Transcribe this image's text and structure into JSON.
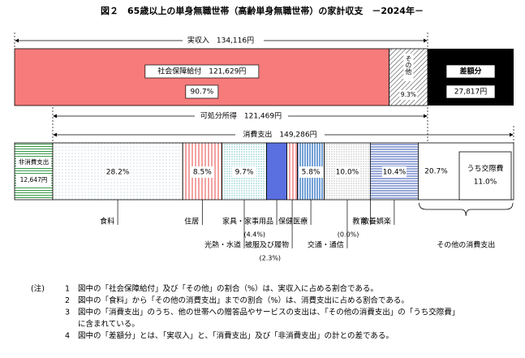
{
  "title": "図２　65歳以上の単身無職世帯（高齢単身無職世帯）の家計収支　－2024年－",
  "arrows": {
    "income": "実収入　134,116円",
    "disposable": "可処分所得　121,469円",
    "consumption": "消費支出　149,286円"
  },
  "income": {
    "segments": [
      {
        "name": "社会保障給付　121,629円",
        "value": 90.7,
        "value_label": "90.7%",
        "color": "#f77b7b"
      },
      {
        "name": "その他",
        "value": 9.3,
        "value_label": "9.3%"
      }
    ],
    "balance": {
      "name": "差額分",
      "amount": "27,817円"
    }
  },
  "non_consumption": {
    "name": "非消費支出",
    "amount": "12,647円",
    "color": "#3a9a4a"
  },
  "consumption": {
    "segments": [
      {
        "name": "食料",
        "value": 28.2,
        "value_label": "28.2%"
      },
      {
        "name": "住居",
        "value": 8.5,
        "value_label": "8.5%"
      },
      {
        "name": "光熱・水道",
        "value": 9.7,
        "value_label": "9.7%"
      },
      {
        "name": "家具・家事用品",
        "value": 4.4,
        "value_label": "(4.4%)"
      },
      {
        "name": "被服及び履物",
        "value": 2.3,
        "value_label": "(2.3%)"
      },
      {
        "name": "保健医療",
        "value": 5.8,
        "value_label": "5.8%"
      },
      {
        "name": "交通・通信",
        "value": 10,
        "value_label": "10.0%"
      },
      {
        "name": "教育",
        "value": 0,
        "value_label": "(0.0%)"
      },
      {
        "name": "教養娯楽",
        "value": 10.4,
        "value_label": "10.4%"
      },
      {
        "name": "その他の消費支出",
        "value": 20.7,
        "value_label": "20.7%",
        "sub": {
          "name": "うち交際費",
          "value": 11,
          "value_label": "11.0%"
        }
      }
    ]
  },
  "notes": {
    "head": "(注)",
    "items": [
      {
        "num": "1",
        "lines": [
          "図中の「社会保障給付」及び「その他」の割合（%）は、実収入に占める割合である。"
        ]
      },
      {
        "num": "2",
        "lines": [
          "図中の「食料」から「その他の消費支出」までの割合（%）は、消費支出に占める割合である。"
        ]
      },
      {
        "num": "3",
        "lines": [
          "図中の「消費支出」のうち、他の世帯への贈答品やサービスの支出は、「その他の消費支出」の「うち交際費」",
          "に含まれている。"
        ]
      },
      {
        "num": "4",
        "lines": [
          "図中の「差額分」とは、「実収入」と、「消費支出」及び「非消費支出」の計との差である。"
        ]
      }
    ]
  }
}
